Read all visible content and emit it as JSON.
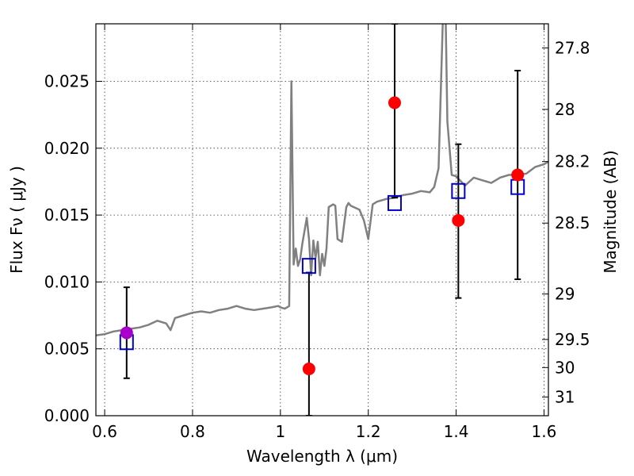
{
  "chart_data": {
    "type": "scatter",
    "title": "",
    "xlabel": "Wavelength  λ (μm)",
    "ylabel": "Flux  Fν  ( μJy )",
    "y2label": "Magnitude (AB)",
    "xlim": [
      0.58,
      1.61
    ],
    "ylim": [
      0.0,
      0.0293
    ],
    "x_ticks": [
      "0.6",
      "0.8",
      "1",
      "1.2",
      "1.4",
      "1.6"
    ],
    "y_ticks": [
      "0.000",
      "0.005",
      "0.010",
      "0.015",
      "0.020",
      "0.025"
    ],
    "y2_ticks": [
      "27.8",
      "28",
      "28.2",
      "28.5",
      "29",
      "29.5",
      "30",
      "31"
    ],
    "grid": true,
    "colors": {
      "template": "#808080",
      "observed": "#ff0000",
      "model": "#0000cc",
      "highlight": "#aa00cc",
      "errorbar": "#000000"
    },
    "series": [
      {
        "kind": "template-spectrum",
        "x": [
          0.58,
          0.6,
          0.62,
          0.64,
          0.66,
          0.68,
          0.7,
          0.72,
          0.74,
          0.75,
          0.76,
          0.78,
          0.8,
          0.82,
          0.84,
          0.86,
          0.88,
          0.9,
          0.92,
          0.94,
          0.96,
          0.98,
          0.995,
          1.0,
          1.01,
          1.015,
          1.02,
          1.025,
          1.03,
          1.035,
          1.04,
          1.045,
          1.05,
          1.06,
          1.065,
          1.07,
          1.075,
          1.08,
          1.085,
          1.09,
          1.095,
          1.1,
          1.105,
          1.11,
          1.12,
          1.125,
          1.13,
          1.14,
          1.15,
          1.155,
          1.16,
          1.18,
          1.19,
          1.2,
          1.21,
          1.22,
          1.24,
          1.26,
          1.28,
          1.3,
          1.32,
          1.34,
          1.35,
          1.36,
          1.37,
          1.373,
          1.376,
          1.38,
          1.39,
          1.4,
          1.42,
          1.44,
          1.46,
          1.48,
          1.5,
          1.52,
          1.54,
          1.56,
          1.58,
          1.6,
          1.61
        ],
        "y": [
          0.006,
          0.0061,
          0.0063,
          0.0064,
          0.0065,
          0.0066,
          0.0068,
          0.0071,
          0.0069,
          0.0064,
          0.0073,
          0.0075,
          0.0077,
          0.0078,
          0.0077,
          0.0079,
          0.008,
          0.0082,
          0.008,
          0.0079,
          0.008,
          0.0081,
          0.0082,
          0.0081,
          0.008,
          0.0081,
          0.0082,
          0.025,
          0.0113,
          0.0125,
          0.0112,
          0.0117,
          0.0129,
          0.0148,
          0.0132,
          0.0105,
          0.0131,
          0.0118,
          0.013,
          0.0105,
          0.0121,
          0.0112,
          0.0125,
          0.0156,
          0.0158,
          0.0157,
          0.0132,
          0.013,
          0.0156,
          0.0159,
          0.0157,
          0.0154,
          0.0146,
          0.0132,
          0.0158,
          0.016,
          0.0162,
          0.0163,
          0.0165,
          0.0166,
          0.0168,
          0.0167,
          0.0171,
          0.0185,
          0.03,
          0.03,
          0.03,
          0.022,
          0.018,
          0.0179,
          0.0172,
          0.0178,
          0.0176,
          0.0174,
          0.0178,
          0.018,
          0.018,
          0.0181,
          0.0186,
          0.0188,
          0.019
        ]
      },
      {
        "kind": "model-photometry",
        "x": [
          0.65,
          1.065,
          1.26,
          1.405,
          1.54
        ],
        "y": [
          0.0055,
          0.0112,
          0.0159,
          0.0168,
          0.0171
        ]
      },
      {
        "kind": "observed-photometry",
        "x": [
          1.065,
          1.26,
          1.405,
          1.54
        ],
        "y": [
          0.0035,
          0.0234,
          0.0146,
          0.018
        ]
      },
      {
        "kind": "observed-photometry-highlight",
        "x": [
          0.65
        ],
        "y": [
          0.0062
        ]
      }
    ],
    "errorbars": [
      {
        "x": 0.65,
        "low": 0.0028,
        "high": 0.0096
      },
      {
        "x": 1.065,
        "low": 0.0,
        "high": 0.0107
      },
      {
        "x": 1.26,
        "low": 0.0163,
        "high": 0.0293
      },
      {
        "x": 1.405,
        "low": 0.0088,
        "high": 0.0203
      },
      {
        "x": 1.54,
        "low": 0.0102,
        "high": 0.0258
      }
    ],
    "mag_tick_positions": [
      {
        "label": "27.8",
        "y": 0.0275
      },
      {
        "label": "28",
        "y": 0.0229
      },
      {
        "label": "28.2",
        "y": 0.019
      },
      {
        "label": "28.5",
        "y": 0.0144
      },
      {
        "label": "29",
        "y": 0.0091
      },
      {
        "label": "29.5",
        "y": 0.0057
      },
      {
        "label": "30",
        "y": 0.0036
      },
      {
        "label": "31",
        "y": 0.0014
      }
    ]
  }
}
